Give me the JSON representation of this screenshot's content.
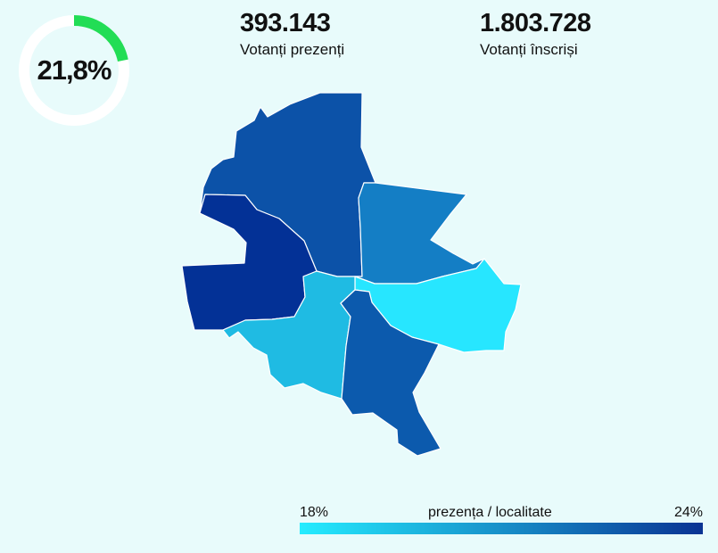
{
  "turnout": {
    "value_label": "21,8%",
    "fraction": 0.218,
    "track_color": "#ffffff",
    "fill_color": "#22dd55"
  },
  "voters_present": {
    "value": "393.143",
    "label": "Votanți prezenți"
  },
  "voters_registered": {
    "value": "1.803.728",
    "label": "Votanți înscriși"
  },
  "map": {
    "sectors": [
      {
        "name": "north",
        "color": "#0c52a8"
      },
      {
        "name": "west",
        "color": "#033196"
      },
      {
        "name": "east",
        "color": "#147ec5"
      },
      {
        "name": "southeast",
        "color": "#27e6ff"
      },
      {
        "name": "southwest",
        "color": "#1fbbe3"
      },
      {
        "name": "south",
        "color": "#0c5aad"
      }
    ]
  },
  "legend": {
    "min_label": "18%",
    "max_label": "24%",
    "title": "prezența / localitate",
    "color_start": "#25ecff",
    "color_end": "#0a3393"
  }
}
